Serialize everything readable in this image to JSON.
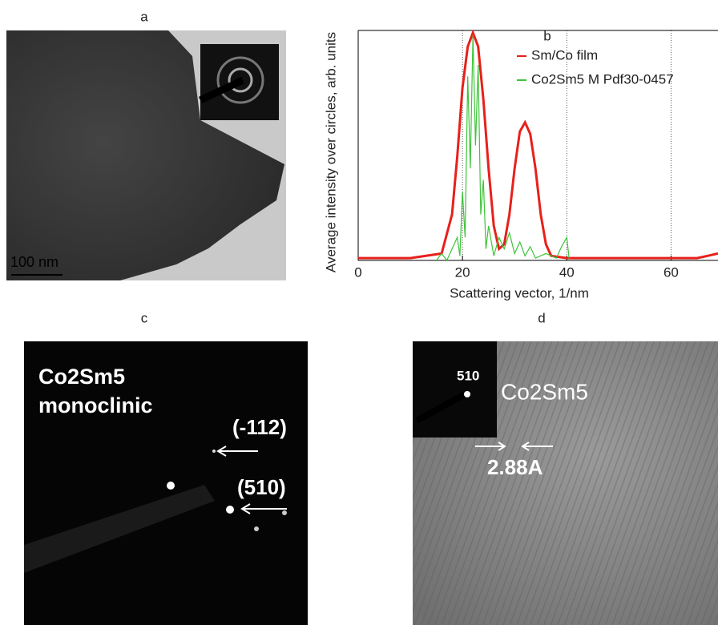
{
  "panels": [
    {
      "label": "a",
      "scale_bar": "100 nm"
    },
    {
      "label": "c",
      "annotations": [
        "Co2Sm5",
        "monoclinic",
        "(-112)",
        "(510)"
      ]
    },
    {
      "label": "d",
      "annotations": [
        "510",
        "Co2Sm5",
        "2.88A"
      ]
    }
  ],
  "chart_data": {
    "type": "line",
    "title": "b",
    "xlabel": "Scattering vector, 1/nm",
    "ylabel": "Average intensity over circles, arb. units",
    "xlim": [
      0,
      69
    ],
    "xticks": [
      0,
      20,
      40,
      60
    ],
    "ylim": [
      0,
      1
    ],
    "grid": true,
    "series": [
      {
        "name": "Sm/Co film",
        "color": "#e8201a",
        "x": [
          0,
          10,
          16,
          18,
          19,
          20,
          21,
          22,
          23,
          24,
          25,
          26,
          27,
          28,
          29,
          30,
          31,
          32,
          33,
          34,
          35,
          36,
          37,
          40,
          60,
          65,
          67,
          69
        ],
        "values": [
          0.01,
          0.01,
          0.03,
          0.2,
          0.45,
          0.75,
          0.93,
          0.99,
          0.93,
          0.7,
          0.4,
          0.15,
          0.05,
          0.07,
          0.2,
          0.4,
          0.56,
          0.6,
          0.55,
          0.4,
          0.2,
          0.07,
          0.02,
          0.01,
          0.01,
          0.01,
          0.02,
          0.03
        ]
      },
      {
        "name": "Co2Sm5 M Pdf30-0457",
        "color": "#3ec43a",
        "x": [
          15,
          16,
          17,
          18,
          19,
          19.5,
          20,
          20.5,
          21,
          21.5,
          22,
          22.5,
          23,
          23.5,
          24,
          24.5,
          25,
          26,
          27,
          28,
          29,
          30,
          31,
          32,
          33,
          34,
          36,
          38,
          39,
          40,
          40.5
        ],
        "values": [
          0,
          0.03,
          0,
          0.05,
          0.1,
          0.02,
          0.3,
          0.1,
          0.8,
          0.4,
          0.98,
          0.5,
          0.85,
          0.2,
          0.35,
          0.05,
          0.15,
          0.02,
          0.1,
          0.05,
          0.12,
          0.03,
          0.08,
          0.02,
          0.06,
          0.01,
          0.03,
          0.01,
          0.06,
          0.1,
          0
        ]
      }
    ]
  }
}
